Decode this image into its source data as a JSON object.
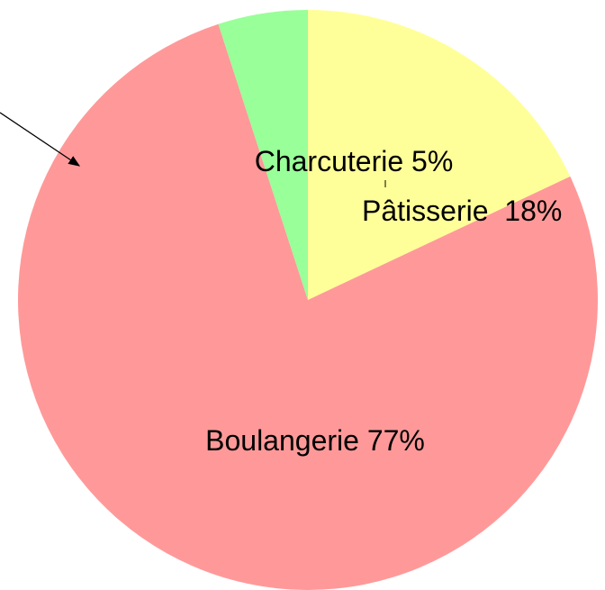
{
  "chart_data": {
    "type": "pie",
    "categories": [
      "Pâtisserie",
      "Boulangerie",
      "Charcuterie"
    ],
    "values": [
      18,
      77,
      5
    ],
    "value_labels": [
      "18%",
      "77%",
      "5%"
    ],
    "colors": [
      "#ffff99",
      "#ff9999",
      "#99ff99"
    ]
  }
}
